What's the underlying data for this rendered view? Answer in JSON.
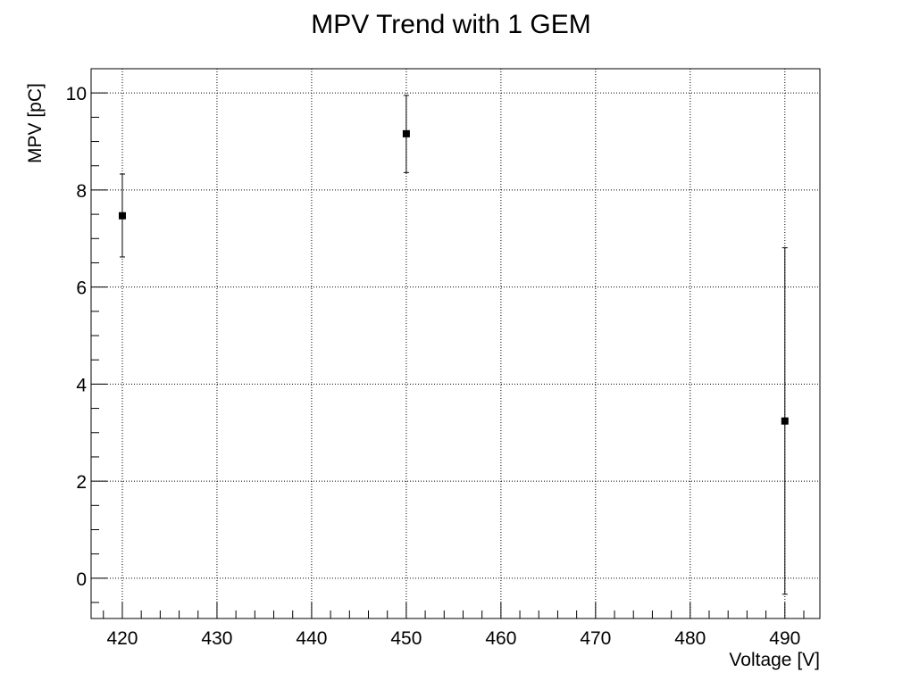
{
  "chart_data": {
    "type": "scatter",
    "title": "MPV Trend with 1 GEM",
    "xlabel": "Voltage [V]",
    "ylabel": "MPV [pC]",
    "xlim": [
      416.7,
      493.7
    ],
    "ylim": [
      -0.83,
      10.5
    ],
    "x_ticks": [
      420,
      430,
      440,
      450,
      460,
      470,
      480,
      490
    ],
    "y_ticks": [
      0,
      2,
      4,
      6,
      8,
      10
    ],
    "grid": true,
    "marker": "square",
    "marker_color": "#000000",
    "series": [
      {
        "points": [
          {
            "x": 420,
            "y": 7.47,
            "yerr_low": 6.62,
            "yerr_high": 8.33
          },
          {
            "x": 450,
            "y": 9.16,
            "yerr_low": 8.36,
            "yerr_high": 9.95
          },
          {
            "x": 490,
            "y": 3.24,
            "yerr_low": -0.33,
            "yerr_high": 6.81
          }
        ]
      }
    ]
  }
}
